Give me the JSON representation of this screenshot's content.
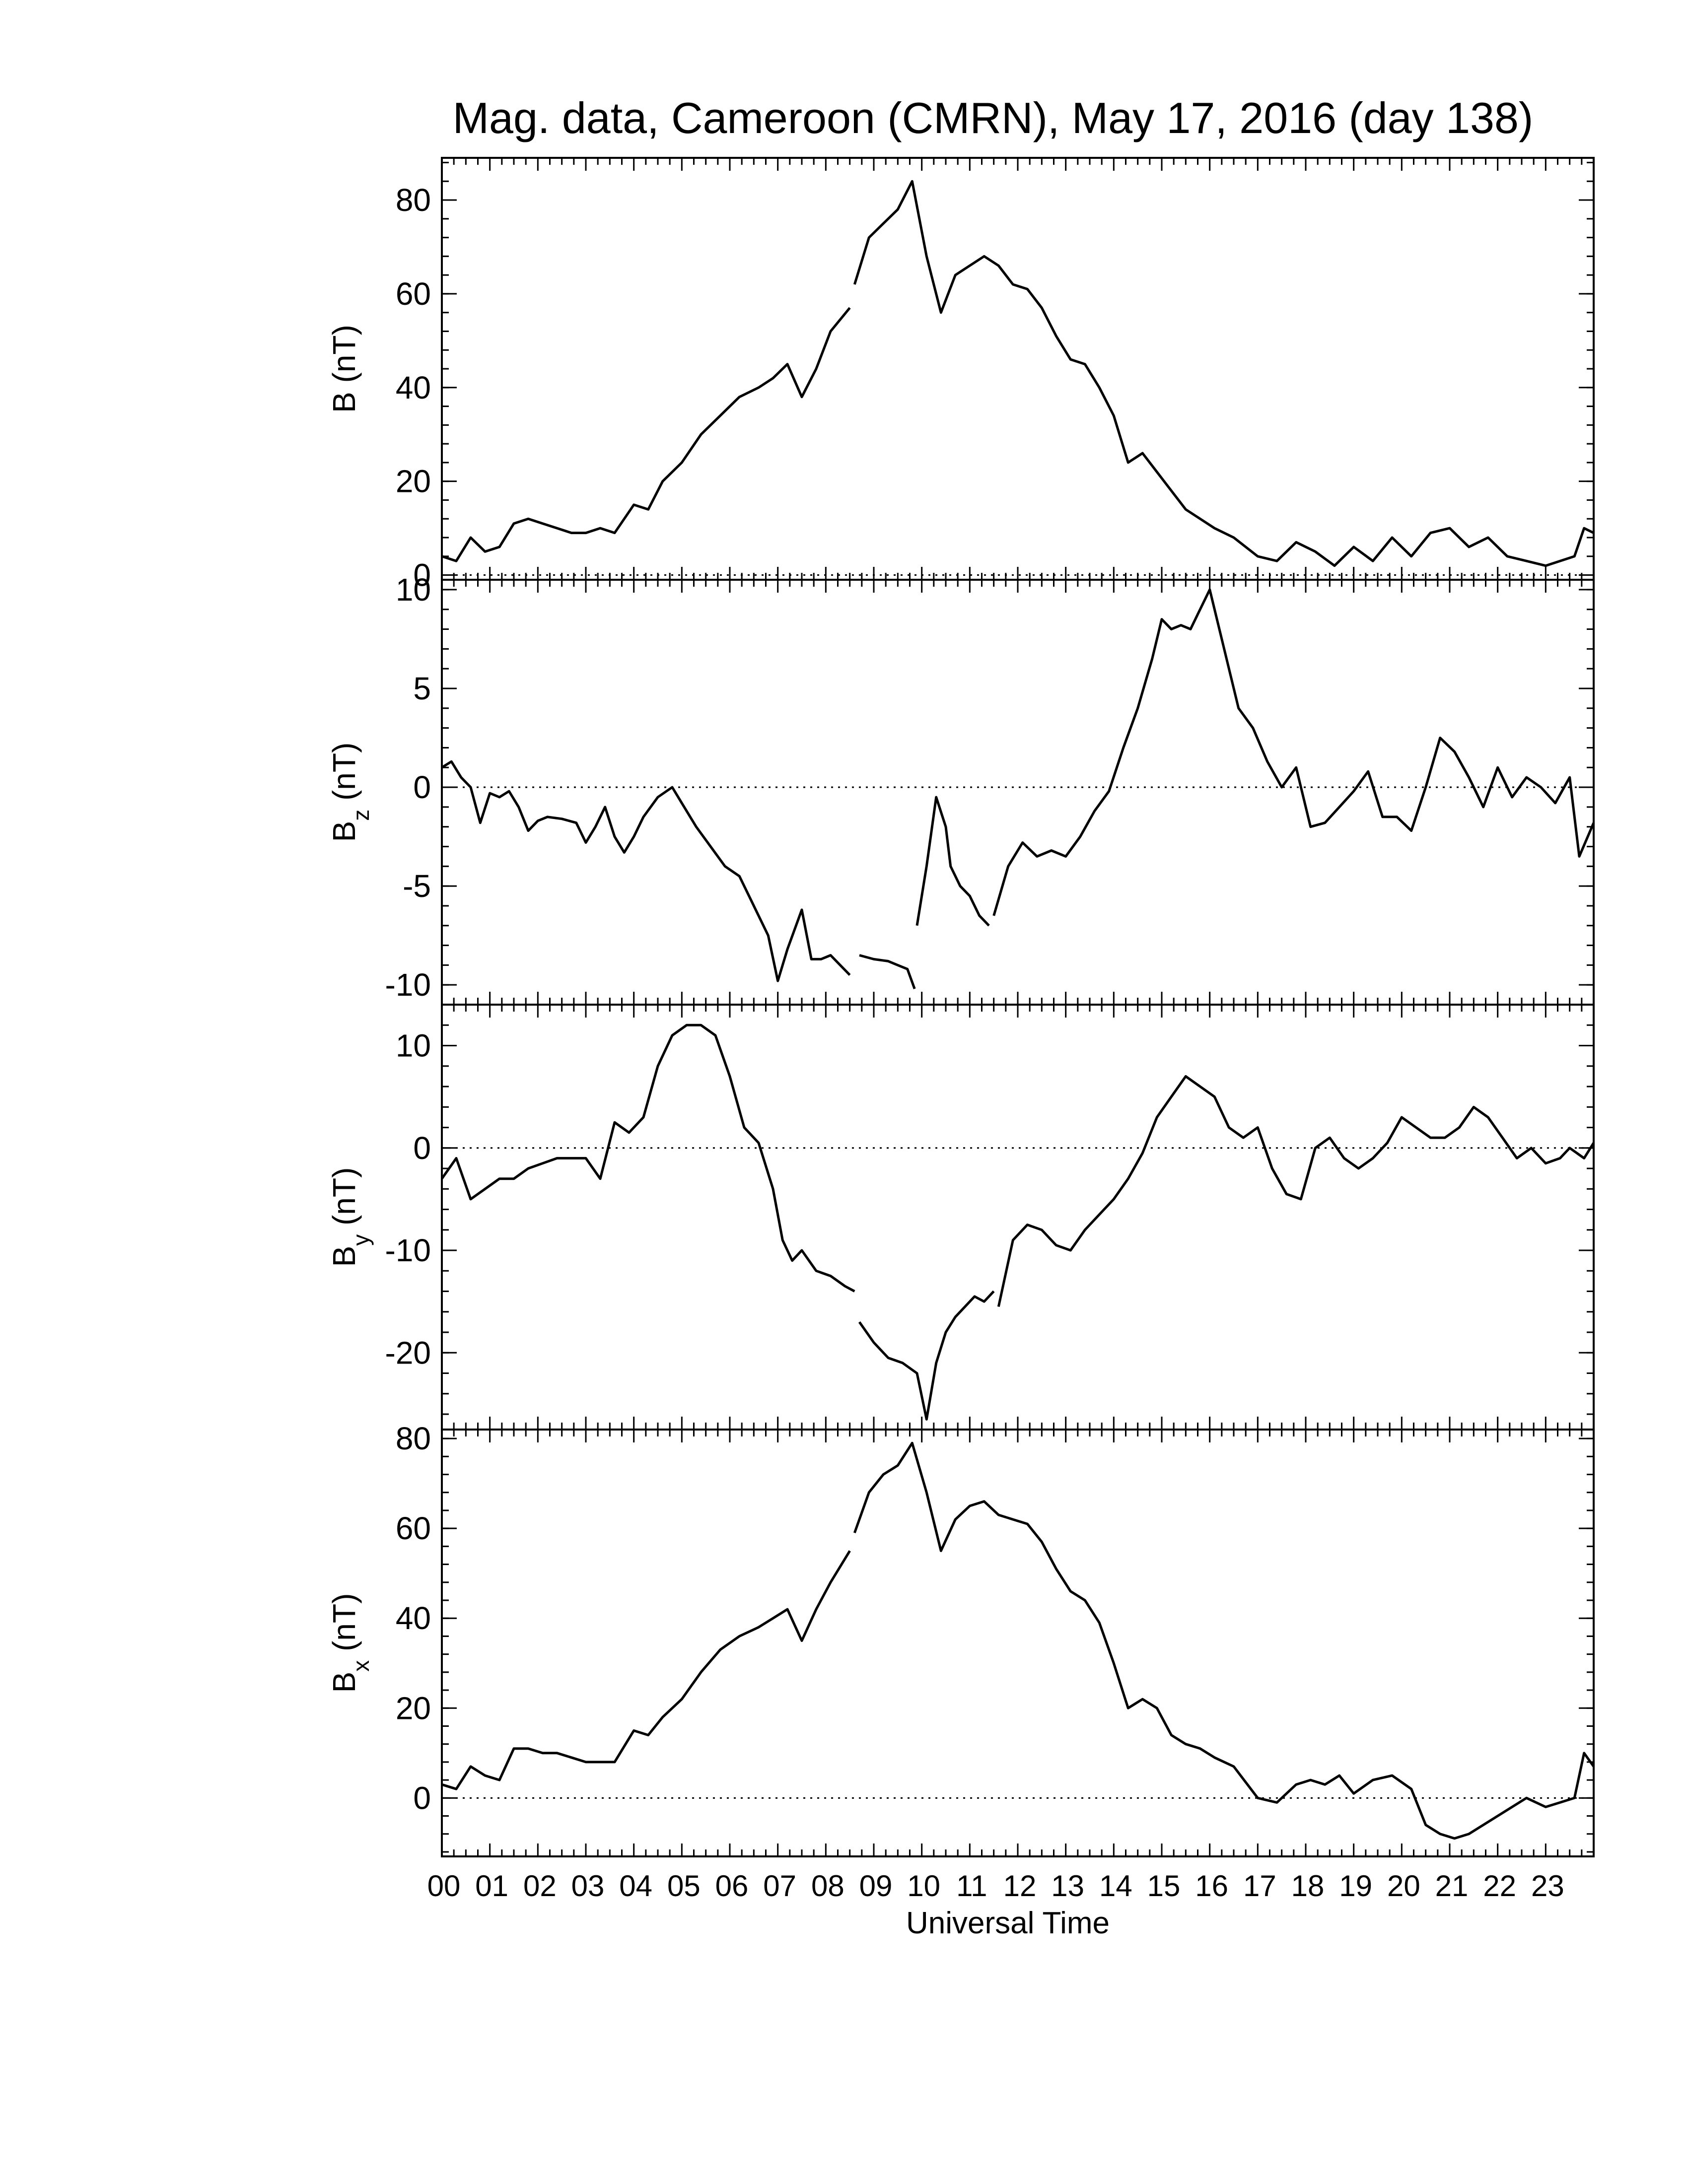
{
  "figure": {
    "title": "Mag. data, Cameroon (CMRN), May 17, 2016 (day 138)",
    "xlabel": "Universal Time"
  },
  "chart_data": [
    {
      "type": "line",
      "ylabel": "B (nT)",
      "ylabel_main": "B",
      "ylabel_sub": "",
      "ylabel_unit": "(nT)",
      "xlim": [
        0,
        24
      ],
      "ylim": [
        -1,
        89
      ],
      "yticks": [
        0,
        20,
        40,
        60,
        80
      ],
      "zero_line": true,
      "x_ticklabels": [
        "00",
        "01",
        "02",
        "03",
        "04",
        "05",
        "06",
        "07",
        "08",
        "09",
        "10",
        "11",
        "12",
        "13",
        "14",
        "15",
        "16",
        "17",
        "18",
        "19",
        "20",
        "21",
        "22",
        "23"
      ],
      "segments": [
        {
          "x": [
            0,
            0.3,
            0.6,
            0.9,
            1.2,
            1.5,
            1.8,
            2.1,
            2.4,
            2.7,
            3,
            3.3,
            3.6,
            4,
            4.3,
            4.6,
            5,
            5.4,
            5.8,
            6.2,
            6.6,
            6.9,
            7.2,
            7.5,
            7.8,
            8.1,
            8.5
          ],
          "y": [
            4,
            3,
            8,
            5,
            6,
            11,
            12,
            11,
            10,
            9,
            9,
            10,
            9,
            15,
            14,
            20,
            24,
            30,
            34,
            38,
            40,
            42,
            45,
            38,
            44,
            52,
            57
          ]
        },
        {
          "x": [
            8.6,
            8.9,
            9.2,
            9.5,
            9.8,
            10.1,
            10.4,
            10.7,
            11,
            11.3,
            11.6,
            11.9,
            12.2,
            12.5,
            12.8,
            13.1,
            13.4,
            13.7,
            14,
            14.3,
            14.6,
            14.9,
            15.2,
            15.5,
            15.8,
            16.1,
            16.5,
            17,
            17.4,
            17.8,
            18.2,
            18.6,
            19,
            19.4,
            19.8,
            20.2,
            20.6,
            21,
            21.4,
            21.8,
            22.2,
            22.6,
            23,
            23.3,
            23.6,
            23.8,
            24
          ],
          "y": [
            62,
            72,
            75,
            78,
            84,
            68,
            56,
            64,
            66,
            68,
            66,
            62,
            61,
            57,
            51,
            46,
            45,
            40,
            34,
            24,
            26,
            22,
            18,
            14,
            12,
            10,
            8,
            4,
            3,
            7,
            5,
            2,
            6,
            3,
            8,
            4,
            9,
            10,
            6,
            8,
            4,
            3,
            2,
            3,
            4,
            10,
            9
          ]
        }
      ]
    },
    {
      "type": "line",
      "ylabel": "Bz (nT)",
      "ylabel_main": "B",
      "ylabel_sub": "z",
      "ylabel_unit": "(nT)",
      "xlim": [
        0,
        24
      ],
      "ylim": [
        -11,
        10.5
      ],
      "yticks": [
        -10,
        -5,
        0,
        5,
        10
      ],
      "zero_line": true,
      "x_ticklabels": [
        "00",
        "01",
        "02",
        "03",
        "04",
        "05",
        "06",
        "07",
        "08",
        "09",
        "10",
        "11",
        "12",
        "13",
        "14",
        "15",
        "16",
        "17",
        "18",
        "19",
        "20",
        "21",
        "22",
        "23"
      ],
      "segments": [
        {
          "x": [
            0,
            0.2,
            0.4,
            0.6,
            0.8,
            1,
            1.2,
            1.4,
            1.6,
            1.8,
            2,
            2.2,
            2.5,
            2.8,
            3,
            3.2,
            3.4,
            3.6,
            3.8,
            4,
            4.2,
            4.5,
            4.8,
            5,
            5.3,
            5.6,
            5.9,
            6.2,
            6.5,
            6.8,
            7,
            7.2,
            7.5,
            7.7,
            7.9,
            8.1,
            8.3,
            8.5
          ],
          "y": [
            1,
            1.3,
            0.5,
            0,
            -1.8,
            -0.3,
            -0.5,
            -0.2,
            -1,
            -2.2,
            -1.7,
            -1.5,
            -1.6,
            -1.8,
            -2.8,
            -2,
            -1,
            -2.5,
            -3.3,
            -2.5,
            -1.5,
            -0.5,
            0,
            -0.8,
            -2,
            -3,
            -4,
            -4.5,
            -6,
            -7.5,
            -9.8,
            -8.2,
            -6.2,
            -8.7,
            -8.7,
            -8.5,
            -9,
            -9.5
          ]
        },
        {
          "x": [
            8.7,
            9,
            9.3,
            9.5,
            9.7,
            9.85
          ],
          "y": [
            -8.5,
            -8.7,
            -8.8,
            -9,
            -9.2,
            -10.2
          ]
        },
        {
          "x": [
            9.9,
            10.1,
            10.3,
            10.5,
            10.6,
            10.8,
            11,
            11.2,
            11.4
          ],
          "y": [
            -7,
            -4,
            -0.5,
            -2,
            -4,
            -5,
            -5.5,
            -6.5,
            -7
          ]
        },
        {
          "x": [
            11.5,
            11.8,
            12.1,
            12.4,
            12.7,
            13,
            13.3,
            13.6,
            13.9,
            14.2,
            14.5,
            14.8,
            15,
            15.2,
            15.4,
            15.6,
            15.8,
            16,
            16.3,
            16.6,
            16.9,
            17.2,
            17.5,
            17.8,
            18.1,
            18.4,
            18.7,
            19,
            19.3,
            19.6,
            19.9,
            20.2,
            20.5,
            20.8,
            21.1,
            21.4,
            21.7,
            22,
            22.3,
            22.6,
            22.9,
            23.2,
            23.5,
            23.7,
            24
          ],
          "y": [
            -6.5,
            -4,
            -2.8,
            -3.5,
            -3.2,
            -3.5,
            -2.5,
            -1.2,
            -0.2,
            2,
            4,
            6.5,
            8.5,
            8,
            8.2,
            8,
            9,
            10,
            7,
            4,
            3,
            1.3,
            0,
            1,
            -2,
            -1.8,
            -1,
            -0.2,
            0.8,
            -1.5,
            -1.5,
            -2.2,
            0,
            2.5,
            1.8,
            0.5,
            -1,
            1,
            -0.5,
            0.5,
            0,
            -0.8,
            0.5,
            -3.5,
            -1.8
          ]
        }
      ]
    },
    {
      "type": "line",
      "ylabel": "By (nT)",
      "ylabel_main": "B",
      "ylabel_sub": "y",
      "ylabel_unit": "(nT)",
      "xlim": [
        0,
        24
      ],
      "ylim": [
        -27.5,
        14
      ],
      "yticks": [
        -20,
        -10,
        0,
        10
      ],
      "zero_line": true,
      "x_ticklabels": [
        "00",
        "01",
        "02",
        "03",
        "04",
        "05",
        "06",
        "07",
        "08",
        "09",
        "10",
        "11",
        "12",
        "13",
        "14",
        "15",
        "16",
        "17",
        "18",
        "19",
        "20",
        "21",
        "22",
        "23"
      ],
      "segments": [
        {
          "x": [
            0,
            0.3,
            0.6,
            0.9,
            1.2,
            1.5,
            1.8,
            2.1,
            2.4,
            2.7,
            3,
            3.3,
            3.6,
            3.9,
            4.2,
            4.5,
            4.8,
            5.1,
            5.4,
            5.7,
            6,
            6.3,
            6.6,
            6.9,
            7.1,
            7.3,
            7.5,
            7.8,
            8.1,
            8.4,
            8.6
          ],
          "y": [
            -3,
            -1,
            -5,
            -4,
            -3,
            -3,
            -2,
            -1.5,
            -1,
            -1,
            -1,
            -3,
            2.5,
            1.5,
            3,
            8,
            11,
            12,
            12,
            11,
            7,
            2,
            0.5,
            -4,
            -9,
            -11,
            -10,
            -12,
            -12.5,
            -13.5,
            -14
          ]
        },
        {
          "x": [
            8.7,
            9,
            9.3,
            9.6,
            9.9,
            10.1,
            10.3,
            10.5,
            10.7,
            10.9,
            11.1,
            11.3,
            11.5
          ],
          "y": [
            -17,
            -19,
            -20.5,
            -21,
            -22,
            -26.5,
            -21,
            -18,
            -16.5,
            -15.5,
            -14.5,
            -15,
            -14
          ]
        },
        {
          "x": [
            11.6,
            11.9,
            12.2,
            12.5,
            12.8,
            13.1,
            13.4,
            13.7,
            14,
            14.3,
            14.6,
            14.9,
            15.2,
            15.5,
            15.8,
            16.1,
            16.4,
            16.7,
            17,
            17.3,
            17.6,
            17.9,
            18.2,
            18.5,
            18.8,
            19.1,
            19.4,
            19.7,
            20,
            20.3,
            20.6,
            20.9,
            21.2,
            21.5,
            21.8,
            22.1,
            22.4,
            22.7,
            23,
            23.3,
            23.5,
            23.8,
            24
          ],
          "y": [
            -15.5,
            -9,
            -7.5,
            -8,
            -9.5,
            -10,
            -8,
            -6.5,
            -5,
            -3,
            -0.5,
            3,
            5,
            7,
            6,
            5,
            2,
            1,
            2,
            -2,
            -4.5,
            -5,
            0,
            1,
            -1,
            -2,
            -1,
            0.5,
            3,
            2,
            1,
            1,
            2,
            4,
            3,
            1,
            -1,
            0,
            -1.5,
            -1,
            0,
            -1,
            0.5
          ]
        }
      ]
    },
    {
      "type": "line",
      "ylabel": "Bx (nT)",
      "ylabel_main": "B",
      "ylabel_sub": "x",
      "ylabel_unit": "(nT)",
      "xlim": [
        0,
        24
      ],
      "ylim": [
        -13,
        82
      ],
      "yticks": [
        0,
        20,
        40,
        60,
        80
      ],
      "zero_line": true,
      "x_ticklabels": [
        "00",
        "01",
        "02",
        "03",
        "04",
        "05",
        "06",
        "07",
        "08",
        "09",
        "10",
        "11",
        "12",
        "13",
        "14",
        "15",
        "16",
        "17",
        "18",
        "19",
        "20",
        "21",
        "22",
        "23"
      ],
      "segments": [
        {
          "x": [
            0,
            0.3,
            0.6,
            0.9,
            1.2,
            1.5,
            1.8,
            2.1,
            2.4,
            2.7,
            3,
            3.3,
            3.6,
            4,
            4.3,
            4.6,
            5,
            5.4,
            5.8,
            6.2,
            6.6,
            6.9,
            7.2,
            7.5,
            7.8,
            8.1,
            8.5
          ],
          "y": [
            3,
            2,
            7,
            5,
            4,
            11,
            11,
            10,
            10,
            9,
            8,
            8,
            8,
            15,
            14,
            18,
            22,
            28,
            33,
            36,
            38,
            40,
            42,
            35,
            42,
            48,
            55
          ]
        },
        {
          "x": [
            8.6,
            8.9,
            9.2,
            9.5,
            9.8,
            10.1,
            10.4,
            10.7,
            11,
            11.3,
            11.6,
            11.9,
            12.2,
            12.5,
            12.8,
            13.1,
            13.4,
            13.7,
            14,
            14.3,
            14.6,
            14.9,
            15.2,
            15.5,
            15.8,
            16.1,
            16.5,
            17,
            17.4,
            17.8,
            18.1,
            18.4,
            18.7,
            19,
            19.4,
            19.8,
            20.2,
            20.5,
            20.8,
            21.1,
            21.4,
            21.7,
            22,
            22.3,
            22.6,
            23,
            23.3,
            23.6,
            23.8,
            24
          ],
          "y": [
            59,
            68,
            72,
            74,
            79,
            68,
            55,
            62,
            65,
            66,
            63,
            62,
            61,
            57,
            51,
            46,
            44,
            39,
            30,
            20,
            22,
            20,
            14,
            12,
            11,
            9,
            7,
            0,
            -1,
            3,
            4,
            3,
            5,
            1,
            4,
            5,
            2,
            -6,
            -8,
            -9,
            -8,
            -6,
            -4,
            -2,
            0,
            -2,
            -1,
            0,
            10,
            7
          ]
        }
      ]
    }
  ]
}
